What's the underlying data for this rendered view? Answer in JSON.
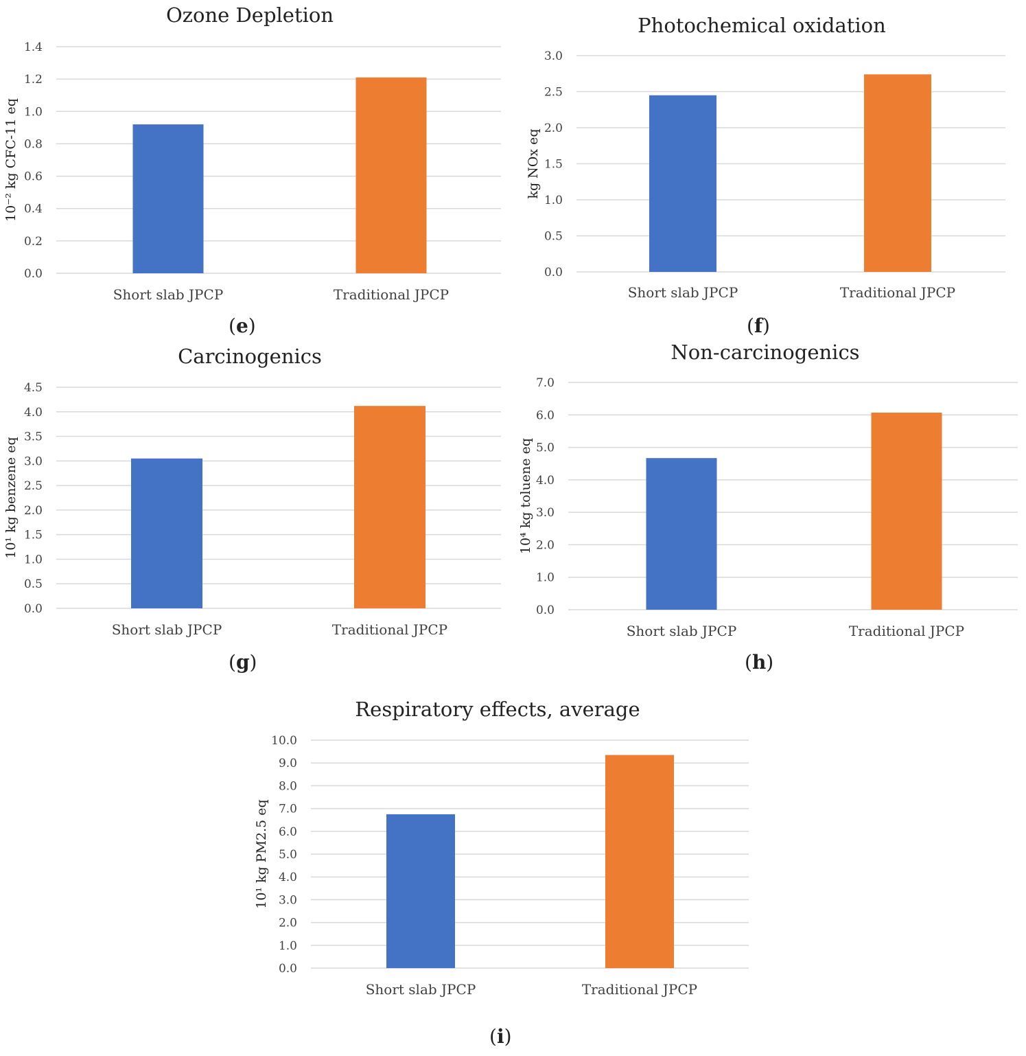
{
  "colors": {
    "short": "#4472C4",
    "traditional": "#ED7D31",
    "grid": "#d9d9d9",
    "text": "#404040"
  },
  "panel_labels": {
    "e": "e",
    "f": "f",
    "g": "g",
    "h": "h",
    "i": "i"
  },
  "chart_data": [
    {
      "id": "e",
      "type": "bar",
      "title": "Ozone Depletion",
      "ylabel": "10⁻² kg CFC-11 eq",
      "categories": [
        "Short slab JPCP",
        "Traditional JPCP"
      ],
      "values": [
        0.92,
        1.21
      ],
      "ylim": [
        0,
        1.4
      ],
      "yticks": [
        "0.0",
        "0.2",
        "0.4",
        "0.6",
        "0.8",
        "1.0",
        "1.2",
        "1.4"
      ],
      "grid": true
    },
    {
      "id": "f",
      "type": "bar",
      "title": "Photochemical oxidation",
      "ylabel": "kg NOx eq",
      "categories": [
        "Short slab JPCP",
        "Traditional JPCP"
      ],
      "values": [
        2.45,
        2.74
      ],
      "ylim": [
        0,
        3.0
      ],
      "yticks": [
        "0.0",
        "0.5",
        "1.0",
        "1.5",
        "2.0",
        "2.5",
        "3.0"
      ],
      "grid": true
    },
    {
      "id": "g",
      "type": "bar",
      "title": "Carcinogenics",
      "ylabel": "10¹ kg benzene eq",
      "categories": [
        "Short slab JPCP",
        "Traditional JPCP"
      ],
      "values": [
        3.05,
        4.12
      ],
      "ylim": [
        0,
        4.5
      ],
      "yticks": [
        "0.0",
        "0.5",
        "1.0",
        "1.5",
        "2.0",
        "2.5",
        "3.0",
        "3.5",
        "4.0",
        "4.5"
      ],
      "grid": true
    },
    {
      "id": "h",
      "type": "bar",
      "title": "Non-carcinogenics",
      "ylabel": "10⁴ kg toluene eq",
      "categories": [
        "Short slab JPCP",
        "Traditional JPCP"
      ],
      "values": [
        4.67,
        6.07
      ],
      "ylim": [
        0,
        7.0
      ],
      "yticks": [
        "0.0",
        "1.0",
        "2.0",
        "3.0",
        "4.0",
        "5.0",
        "6.0",
        "7.0"
      ],
      "grid": true
    },
    {
      "id": "i",
      "type": "bar",
      "title": "Respiratory effects, average",
      "ylabel": "10¹ kg PM2.5 eq",
      "categories": [
        "Short slab JPCP",
        "Traditional JPCP"
      ],
      "values": [
        6.75,
        9.35
      ],
      "ylim": [
        0,
        10.0
      ],
      "yticks": [
        "0.0",
        "1.0",
        "2.0",
        "3.0",
        "4.0",
        "5.0",
        "6.0",
        "7.0",
        "8.0",
        "9.0",
        "10.0"
      ],
      "grid": true
    }
  ]
}
